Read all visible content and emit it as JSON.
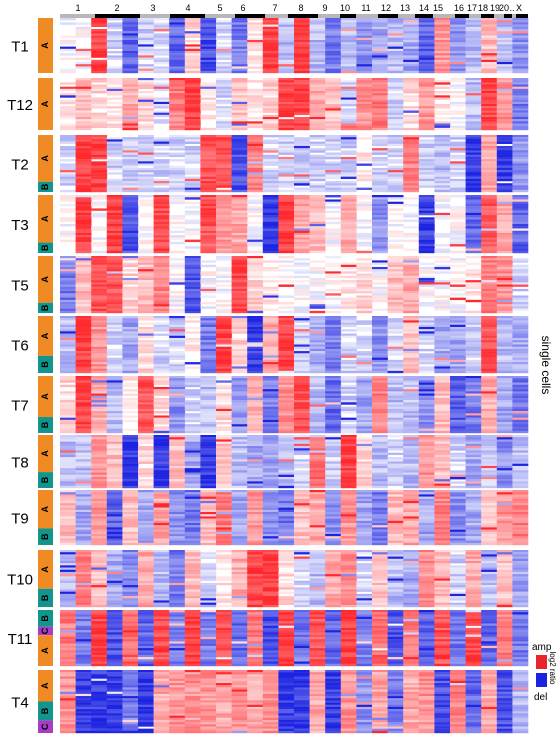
{
  "chromosomes": [
    "1",
    "2",
    "3",
    "4",
    "5",
    "6",
    "7",
    "8",
    "9",
    "10",
    "11",
    "12",
    "13",
    "14",
    "15",
    "16",
    "17",
    "18",
    "19",
    "20",
    "..",
    "X"
  ],
  "tumors": [
    {
      "name": "T1",
      "clones": [
        "A"
      ],
      "pattern": [
        0,
        0,
        0.9,
        -0.2,
        -0.7,
        -0.2,
        -0.2,
        -0.7,
        0.2,
        -0.8,
        -0.2,
        -0.6,
        0.1,
        0.9,
        -0.3,
        0.9,
        -0.3,
        -0.6,
        -0.3,
        -0.5,
        -0.4,
        -0.3,
        -0.4,
        -0.7,
        0.5,
        -0.5,
        -0.3,
        0.3,
        -0.3,
        -0.5
      ]
    },
    {
      "name": "T12",
      "clones": [
        "A"
      ],
      "pattern": [
        0.1,
        0.3,
        0.2,
        0.1,
        0.4,
        0.2,
        -0.1,
        0.6,
        0.9,
        0.1,
        -0.2,
        0.3,
        0.1,
        0.2,
        0.9,
        0.9,
        0.4,
        0.3,
        -0.2,
        0.5,
        0.6,
        -0.2,
        0.2,
        0.5,
        0.1,
        0,
        -0.3,
        0.9,
        0.5,
        -0.6
      ]
    },
    {
      "name": "T2",
      "clones": [
        "A",
        "B"
      ],
      "pattern": [
        -0.2,
        0.9,
        0.9,
        -0.2,
        -0.2,
        -0.2,
        -0.2,
        -0.2,
        -0.2,
        0.8,
        0.8,
        -0.8,
        0.6,
        -0.2,
        -0.2,
        -0.2,
        -0.2,
        -0.2,
        -0.2,
        0.1,
        -0.2,
        -0.2,
        0.6,
        -0.2,
        -0.3,
        -0.2,
        -0.9,
        0.4,
        -0.9,
        -0.5
      ]
    },
    {
      "name": "T3",
      "clones": [
        "A",
        "B"
      ],
      "pattern": [
        0,
        0.9,
        0,
        0.9,
        -0.8,
        0,
        0.8,
        0,
        0,
        0.8,
        0.5,
        0.4,
        0,
        -0.9,
        0.9,
        0.4,
        0.3,
        0,
        0.4,
        0,
        -0.5,
        0,
        0,
        -0.9,
        0,
        0,
        -0.7,
        0.8,
        0.4,
        -0.7
      ]
    },
    {
      "name": "T5",
      "clones": [
        "A",
        "B"
      ],
      "pattern": [
        -0.6,
        0.3,
        0.8,
        0.8,
        0.2,
        0.3,
        0.6,
        0,
        -0.8,
        0,
        0,
        0.9,
        0.2,
        0.1,
        0,
        0,
        0,
        0,
        0.1,
        0.2,
        0,
        0.3,
        0.4,
        0,
        0,
        0,
        0.1,
        0.6,
        0.5,
        -0.2
      ]
    },
    {
      "name": "T6",
      "clones": [
        "A",
        "B"
      ],
      "pattern": [
        -0.3,
        0.9,
        0.5,
        -0.2,
        -0.4,
        0.2,
        -0.2,
        -0.2,
        0.1,
        -0.6,
        0.9,
        0.2,
        -0.9,
        0.4,
        0.9,
        -0.2,
        -0.4,
        -0.6,
        -0.2,
        -0.2,
        -0.5,
        -0.2,
        0.3,
        -0.2,
        -0.4,
        -0.4,
        -0.2,
        0.8,
        -0.3,
        -0.4
      ]
    },
    {
      "name": "T7",
      "clones": [
        "A",
        "B"
      ],
      "pattern": [
        0.2,
        0.9,
        0.4,
        -0.3,
        0.1,
        0.8,
        0.2,
        -0.5,
        -0.2,
        -0.3,
        0.2,
        -0.5,
        0.4,
        -0.6,
        0.5,
        0.8,
        -0.3,
        -0.7,
        -0.2,
        -0.4,
        0.6,
        -0.3,
        -0.3,
        -0.5,
        0.3,
        -0.7,
        -0.6,
        0.4,
        -0.4,
        -0.6
      ]
    },
    {
      "name": "T8",
      "clones": [
        "A",
        "B"
      ],
      "pattern": [
        -0.3,
        -0.3,
        0.5,
        0.3,
        -0.9,
        0.2,
        -0.9,
        0.3,
        -0.4,
        -0.9,
        0.3,
        -0.3,
        -0.4,
        -0.4,
        -0.3,
        -0.2,
        0.7,
        -0.2,
        0.9,
        0.2,
        -0.3,
        -0.2,
        -0.3,
        0.5,
        0.3,
        -0.2,
        -0.4,
        -0.2,
        -0.5,
        -0.3
      ]
    },
    {
      "name": "T9",
      "clones": [
        "A",
        "B"
      ],
      "pattern": [
        0.3,
        -0.4,
        0.5,
        -0.7,
        0.3,
        -0.4,
        0.4,
        -0.5,
        -0.6,
        0.3,
        0.6,
        -0.4,
        0.5,
        -0.5,
        -0.6,
        0.3,
        0.4,
        -0.5,
        0.5,
        -0.4,
        -0.6,
        0.3,
        0.4,
        -0.4,
        0.6,
        -0.5,
        -0.4,
        0.3,
        0.5,
        0.6
      ]
    },
    {
      "name": "T10",
      "clones": [
        "A",
        "B"
      ],
      "pattern": [
        -0.3,
        0.6,
        0.3,
        -0.4,
        -0.5,
        0.4,
        -0.3,
        -0.6,
        0.3,
        -0.2,
        0.1,
        0.4,
        0.9,
        0.9,
        0.2,
        -0.2,
        -0.3,
        0.4,
        0.5,
        -0.2,
        0.3,
        -0.3,
        -0.4,
        0.5,
        0.3,
        -0.2,
        0.4,
        -0.3,
        0.3,
        -0.4
      ]
    },
    {
      "name": "T11",
      "clones": [
        "B",
        "C",
        "A"
      ],
      "pattern": [
        0.6,
        -0.6,
        0.9,
        -0.8,
        0.7,
        -0.7,
        0.8,
        -0.6,
        0.9,
        -0.6,
        0.8,
        -0.7,
        0.6,
        -0.8,
        0.9,
        -0.6,
        0.8,
        -0.7,
        0.9,
        -0.6,
        0.7,
        -0.8,
        0.6,
        -0.7,
        0.8,
        -0.6,
        0.9,
        -0.7,
        0.6,
        -0.6
      ]
    },
    {
      "name": "T4",
      "clones": [
        "A",
        "B",
        "C"
      ],
      "pattern": [
        0.5,
        -0.9,
        -0.9,
        -0.9,
        -0.6,
        -0.9,
        0.4,
        0.5,
        0.5,
        0.5,
        0.4,
        0.5,
        0.4,
        0.5,
        -0.9,
        -0.9,
        0.4,
        -0.9,
        0.5,
        -0.5,
        0.4,
        -0.6,
        0.4,
        0.5,
        -0.8,
        0.6,
        -0.7,
        0.4,
        -0.8,
        -0.3
      ]
    }
  ],
  "side_label": "single cells",
  "legend": {
    "amp": "amp",
    "del": "del",
    "scale": "log2 ratio",
    "amp_color": "#e8252a",
    "del_color": "#1a22e0"
  },
  "clone_colors": {
    "A": "#f08a24",
    "B": "#11958c",
    "C": "#a93cc6"
  }
}
